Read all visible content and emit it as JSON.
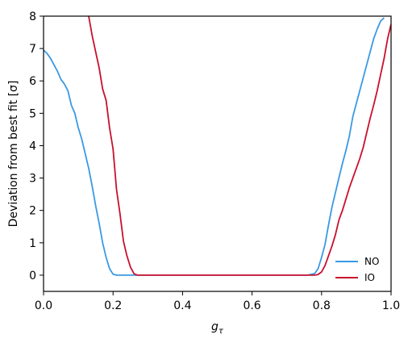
{
  "chart_data": {
    "type": "line",
    "xlabel": "g",
    "xlabel_sub": "τ",
    "ylabel": "Deviation from best fit [σ]",
    "xlim": [
      0.0,
      1.0
    ],
    "ylim": [
      -0.5,
      8.0
    ],
    "xticks": [
      0.0,
      0.2,
      0.4,
      0.6,
      0.8,
      1.0
    ],
    "xtick_labels": [
      "0.0",
      "0.2",
      "0.4",
      "0.6",
      "0.8",
      "1.0"
    ],
    "yticks": [
      0,
      1,
      2,
      3,
      4,
      5,
      6,
      7,
      8
    ],
    "ytick_labels": [
      "0",
      "1",
      "2",
      "3",
      "4",
      "5",
      "6",
      "7",
      "8"
    ],
    "grid": false,
    "legend_position": "bottom-right",
    "series": [
      {
        "name": "NO",
        "color": "#3a99e3",
        "x": [
          0.0,
          0.01,
          0.02,
          0.03,
          0.04,
          0.05,
          0.06,
          0.07,
          0.08,
          0.09,
          0.1,
          0.11,
          0.12,
          0.13,
          0.14,
          0.15,
          0.16,
          0.17,
          0.18,
          0.19,
          0.2,
          0.21,
          0.22,
          0.25,
          0.3,
          0.4,
          0.5,
          0.6,
          0.7,
          0.76,
          0.78,
          0.79,
          0.8,
          0.81,
          0.82,
          0.83,
          0.84,
          0.85,
          0.86,
          0.87,
          0.88,
          0.89,
          0.9,
          0.91,
          0.92,
          0.93,
          0.94,
          0.95,
          0.96,
          0.97,
          0.98
        ],
        "y": [
          6.95,
          6.85,
          6.7,
          6.5,
          6.3,
          6.05,
          5.9,
          5.7,
          5.25,
          5.0,
          4.55,
          4.2,
          3.75,
          3.3,
          2.75,
          2.15,
          1.6,
          1.0,
          0.55,
          0.2,
          0.03,
          0.0,
          0.0,
          0.0,
          0.0,
          0.0,
          0.0,
          0.0,
          0.0,
          0.0,
          0.05,
          0.2,
          0.55,
          0.95,
          1.55,
          2.1,
          2.55,
          3.0,
          3.45,
          3.85,
          4.3,
          4.9,
          5.3,
          5.7,
          6.1,
          6.5,
          6.9,
          7.3,
          7.6,
          7.85,
          7.95
        ]
      },
      {
        "name": "IO",
        "color": "#c8102e",
        "x": [
          0.13,
          0.14,
          0.15,
          0.16,
          0.17,
          0.18,
          0.19,
          0.2,
          0.21,
          0.22,
          0.23,
          0.24,
          0.25,
          0.26,
          0.27,
          0.28,
          0.3,
          0.4,
          0.5,
          0.6,
          0.7,
          0.78,
          0.79,
          0.8,
          0.81,
          0.82,
          0.83,
          0.84,
          0.85,
          0.86,
          0.87,
          0.88,
          0.89,
          0.9,
          0.91,
          0.92,
          0.93,
          0.94,
          0.95,
          0.96,
          0.97,
          0.98,
          0.99,
          1.0
        ],
        "y": [
          8.0,
          7.4,
          6.9,
          6.4,
          5.75,
          5.4,
          4.55,
          3.9,
          2.65,
          1.9,
          1.05,
          0.6,
          0.25,
          0.05,
          0.0,
          0.0,
          0.0,
          0.0,
          0.0,
          0.0,
          0.0,
          0.0,
          0.02,
          0.1,
          0.3,
          0.6,
          0.9,
          1.25,
          1.7,
          2.0,
          2.35,
          2.7,
          3.0,
          3.3,
          3.6,
          3.95,
          4.4,
          4.85,
          5.25,
          5.7,
          6.2,
          6.7,
          7.3,
          7.75
        ]
      }
    ]
  }
}
